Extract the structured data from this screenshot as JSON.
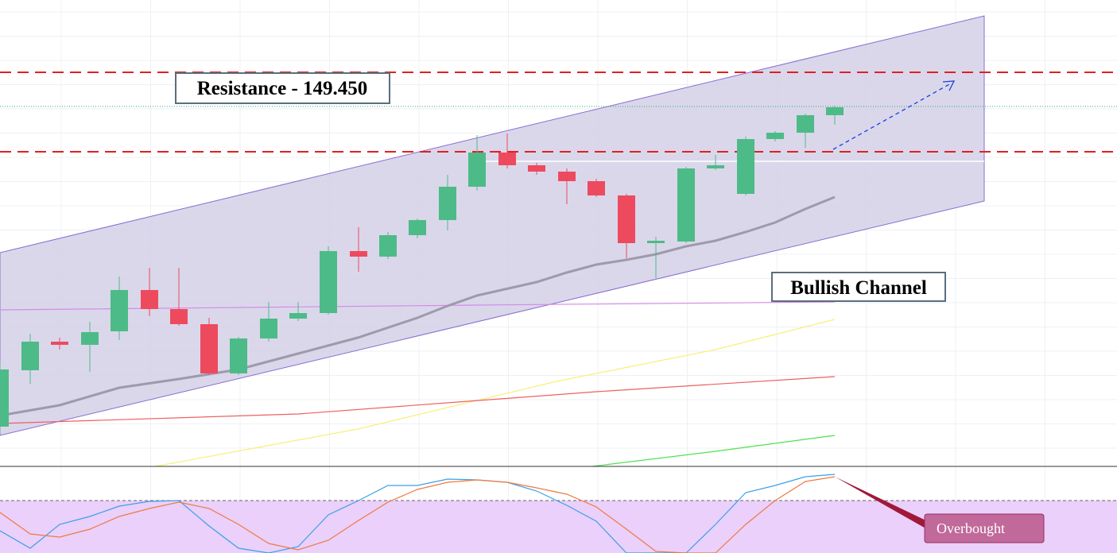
{
  "annotations": {
    "resistance": "Resistance - 149.450",
    "channel": "Bullish Channel",
    "overbought": "Overbought"
  }
}
